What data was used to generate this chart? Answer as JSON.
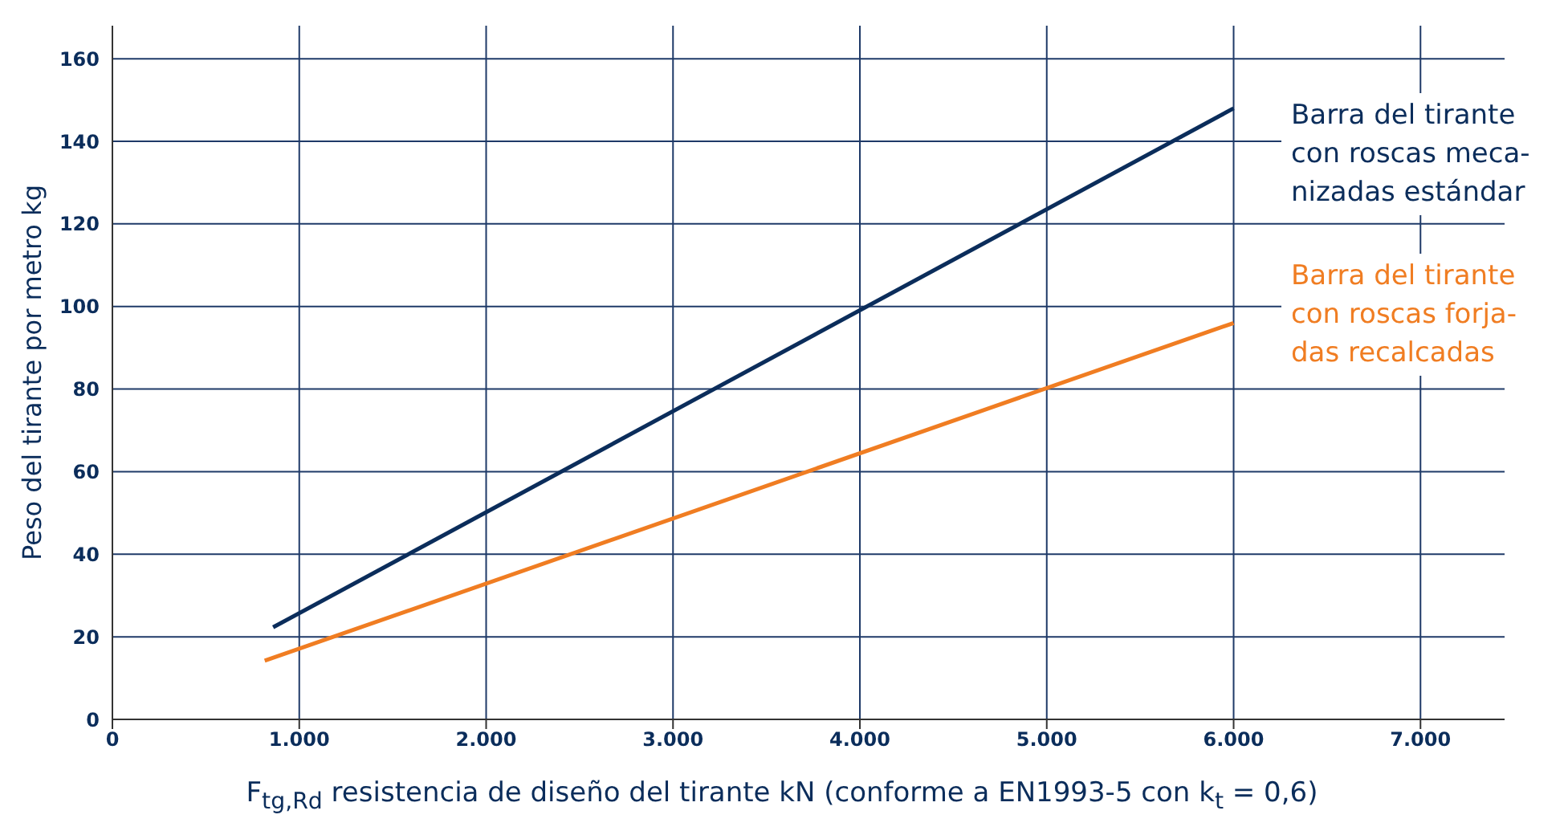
{
  "chart_data": {
    "type": "line",
    "xlabel": "F$_{tg,Rd}$ resistencia de diseño del tirante kN (conforme a EN1993-5 con k$_{t}$ = 0,6)",
    "ylabel": "Peso del tirante por metro kg",
    "series": [
      {
        "name": "Barra del tirante\ncon roscas meca-\nnizadas estándar",
        "color": "#0b2d5b",
        "x": [
          860,
          6000
        ],
        "values": [
          22.3,
          148
        ]
      },
      {
        "name": "Barra del tirante\ncon roscas forja-\ndas recalcadas",
        "color": "#f07d22",
        "x": [
          815,
          6000
        ],
        "values": [
          14.2,
          96
        ]
      }
    ],
    "xlim": [
      0,
      7450
    ],
    "xticks": [
      0,
      {
        "value": 1000,
        "label": "1.000"
      },
      {
        "value": 2000,
        "label": "2.000"
      },
      {
        "value": 3000,
        "label": "3.000"
      },
      {
        "value": 4000,
        "label": "4.000"
      },
      {
        "value": 5000,
        "label": "5.000"
      },
      {
        "value": 6000,
        "label": "6.000"
      },
      {
        "value": 7000,
        "label": "7.000"
      }
    ],
    "ylim": [
      0,
      168
    ],
    "yticks": [
      0,
      20,
      40,
      60,
      80,
      100,
      120,
      140,
      160
    ],
    "grid": true,
    "legend": "right",
    "marker": "none",
    "line_style": "solid"
  }
}
